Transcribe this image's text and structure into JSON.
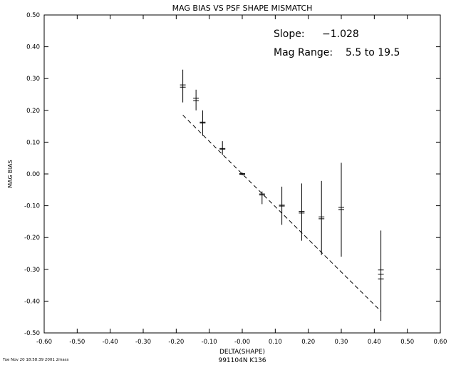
{
  "chart_data": {
    "type": "scatter",
    "title": "MAG BIAS VS PSF SHAPE MISMATCH",
    "xlabel": "DELTA(SHAPE)",
    "ylabel": "MAG BIAS",
    "xlim": [
      -0.6,
      0.6
    ],
    "ylim": [
      -0.5,
      0.5
    ],
    "xticks": [
      "-0.60",
      "-0.50",
      "-0.40",
      "-0.30",
      "-0.20",
      "-0.10",
      "-0.00",
      "0.10",
      "0.20",
      "0.30",
      "0.40",
      "0.50",
      "0.60"
    ],
    "yticks": [
      "0.50",
      "0.40",
      "0.30",
      "0.20",
      "0.10",
      "0.00",
      "-0.10",
      "-0.20",
      "-0.30",
      "-0.40",
      "-0.50"
    ],
    "grid": false,
    "annotations": {
      "slope_label": "Slope:",
      "slope_value": "−1.028",
      "range_label": "Mag Range:",
      "range_value": "5.5 to 19.5"
    },
    "fit_line": {
      "slope": -1.028,
      "x": [
        -0.18,
        0.42
      ]
    },
    "points": [
      {
        "x": -0.18,
        "ys": [
          0.28,
          0.273
        ],
        "err_low": 0.225,
        "err_high": 0.328
      },
      {
        "x": -0.14,
        "ys": [
          0.238,
          0.23
        ],
        "err_low": 0.2,
        "err_high": 0.265
      },
      {
        "x": -0.12,
        "ys": [
          0.163,
          0.16
        ],
        "err_low": 0.12,
        "err_high": 0.2
      },
      {
        "x": -0.06,
        "ys": [
          0.08,
          0.078
        ],
        "err_low": 0.06,
        "err_high": 0.103
      },
      {
        "x": 0.0,
        "ys": [
          0.001,
          -0.001
        ],
        "err_low": -0.004,
        "err_high": 0.004
      },
      {
        "x": 0.06,
        "ys": [
          -0.063,
          -0.066
        ],
        "err_low": -0.095,
        "err_high": -0.055
      },
      {
        "x": 0.12,
        "ys": [
          -0.098,
          -0.101
        ],
        "err_low": -0.16,
        "err_high": -0.04
      },
      {
        "x": 0.18,
        "ys": [
          -0.118,
          -0.123
        ],
        "err_low": -0.21,
        "err_high": -0.03
      },
      {
        "x": 0.24,
        "ys": [
          -0.135,
          -0.141
        ],
        "err_low": -0.255,
        "err_high": -0.022
      },
      {
        "x": 0.3,
        "ys": [
          -0.105,
          -0.112
        ],
        "err_low": -0.26,
        "err_high": 0.035
      },
      {
        "x": 0.42,
        "ys": [
          -0.302,
          -0.315,
          -0.33
        ],
        "err_low": -0.462,
        "err_high": -0.178
      }
    ]
  },
  "footer": {
    "timestamp": "Tue Nov 20 18:58:39 2001 2mass",
    "id": "991104N K136"
  }
}
